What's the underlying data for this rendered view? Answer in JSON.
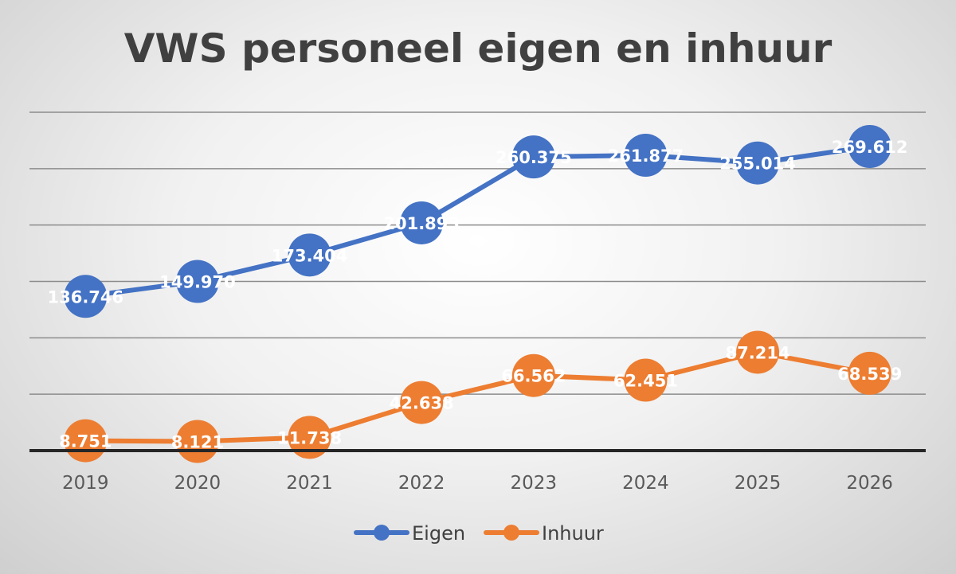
{
  "chart_data": {
    "type": "line",
    "title": "VWS personeel eigen en inhuur",
    "xlabel": "",
    "ylabel": "",
    "categories": [
      "2019",
      "2020",
      "2021",
      "2022",
      "2023",
      "2024",
      "2025",
      "2026"
    ],
    "ylim": [
      0,
      300000
    ],
    "grid": true,
    "legend_position": "bottom",
    "series": [
      {
        "name": "Eigen",
        "color": "#4472C4",
        "values": [
          136746,
          149970,
          173404,
          201893,
          260375,
          261877,
          255014,
          269612
        ],
        "labels": [
          "136.746",
          "149.970",
          "173.404",
          "201.893",
          "260.375",
          "261.877",
          "255.014",
          "269.612"
        ]
      },
      {
        "name": "Inhuur",
        "color": "#ED7D31",
        "values": [
          8751,
          8121,
          11738,
          42638,
          66562,
          62451,
          87214,
          68539
        ],
        "labels": [
          "8.751",
          "8.121",
          "11.738",
          "42.638",
          "66.562",
          "62.451",
          "87.214",
          "68.539"
        ]
      }
    ]
  }
}
